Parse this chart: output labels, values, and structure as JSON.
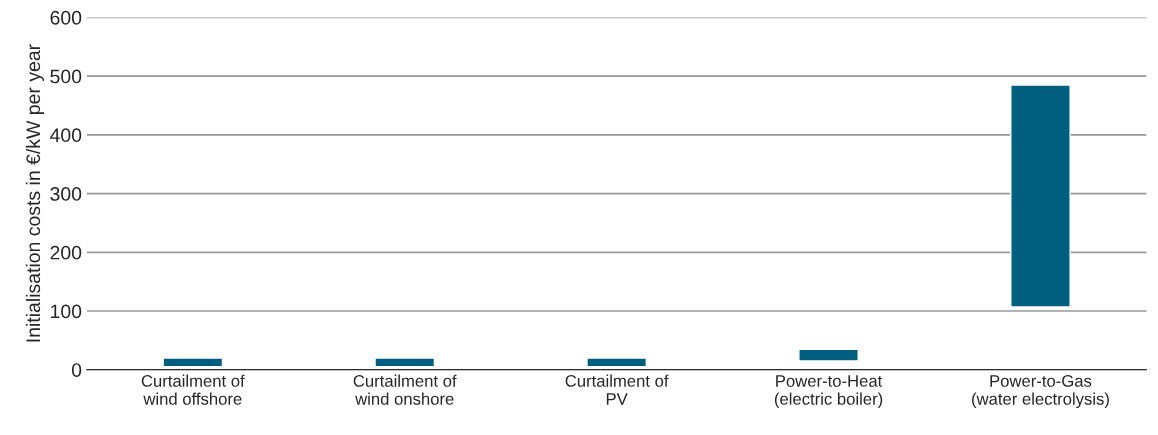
{
  "chart_data": {
    "type": "bar",
    "ylabel": "Initialisation costs in €/kW per year",
    "categories": [
      "Curtailment of\nwind offshore",
      "Curtailment of\nwind onshore",
      "Curtailment of\nPV",
      "Power-to-Heat\n(electric boiler)",
      "Power-to-Gas\n(water electrolysis)"
    ],
    "base": [
      5,
      5,
      5,
      15,
      107
    ],
    "values": [
      15,
      15,
      15,
      20,
      378
    ],
    "color": "#005f7f",
    "ylim": [
      0,
      600
    ],
    "yticks": [
      0,
      100,
      200,
      300,
      400,
      500,
      600
    ],
    "grid": "y"
  }
}
